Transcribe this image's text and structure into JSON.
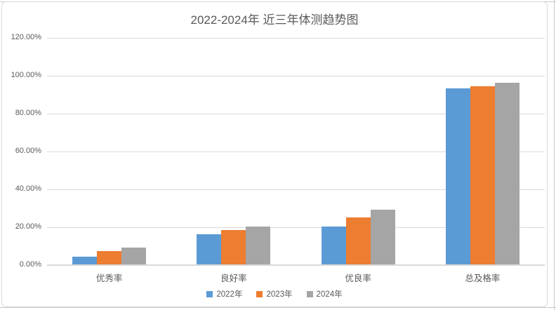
{
  "chart_data": {
    "type": "bar",
    "title": "2022-2024年 近三年体测趋势图",
    "categories": [
      "优秀率",
      "良好率",
      "优良率",
      "总及格率"
    ],
    "series": [
      {
        "name": "2022年",
        "color": "#5B9BD5",
        "values": [
          4,
          16,
          20,
          93
        ]
      },
      {
        "name": "2023年",
        "color": "#ED7D31",
        "values": [
          7,
          18,
          25,
          94
        ]
      },
      {
        "name": "2024年",
        "color": "#A5A5A5",
        "values": [
          9,
          20,
          29,
          96
        ]
      }
    ],
    "value_unit": "%",
    "ylim": [
      0,
      120
    ],
    "y_ticks": [
      {
        "value": 120,
        "label": "120.00%"
      },
      {
        "value": 100,
        "label": "100.00%"
      },
      {
        "value": 80,
        "label": "80.00%"
      },
      {
        "value": 60,
        "label": "60.00%"
      },
      {
        "value": 40,
        "label": "40.00%"
      },
      {
        "value": 20,
        "label": "20.00%"
      },
      {
        "value": 0,
        "label": "0.00%"
      }
    ],
    "grid": true,
    "legend_position": "bottom"
  },
  "colors": {
    "gridline": "#D9D9D9",
    "axis_line": "#D9D9D9",
    "chart_border": "#D9D9D9",
    "text": "#595959",
    "background": "#FFFFFF",
    "sheet_line": "#C9C9C9"
  }
}
